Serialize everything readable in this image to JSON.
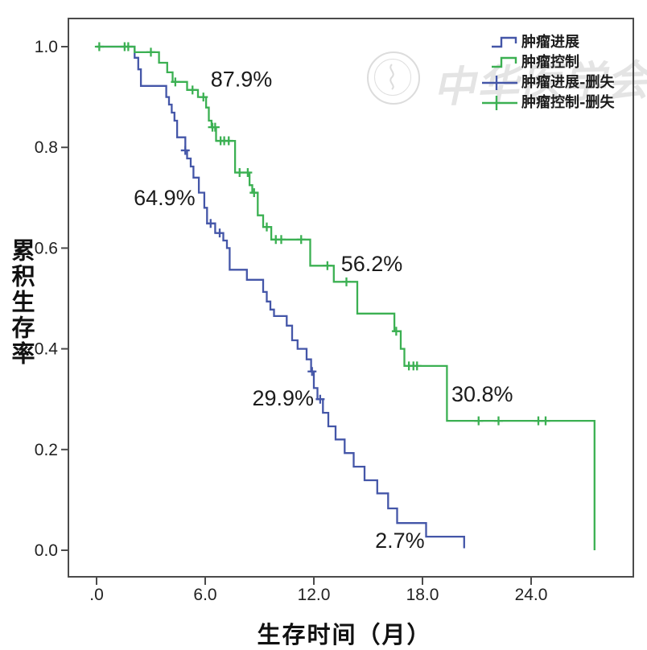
{
  "figure": {
    "background": "#ffffff",
    "frame_color": "#4b4b4b",
    "text_color": "#222222",
    "annotation_color": "#1b1b1b"
  },
  "watermark": {
    "emblem": "chinese-medical-association-seal",
    "text": "中华医学会"
  },
  "y_axis": {
    "title": "累积生存率",
    "ticks": [
      {
        "label": "1.0",
        "value": 1.0
      },
      {
        "label": "0.8",
        "value": 0.8
      },
      {
        "label": "0.6",
        "value": 0.6
      },
      {
        "label": "0.4",
        "value": 0.4
      },
      {
        "label": "0.2",
        "value": 0.2
      },
      {
        "label": "0.0",
        "value": 0.0
      }
    ]
  },
  "x_axis": {
    "title": "生存时间（月）",
    "ticks": [
      {
        "label": ".0",
        "value": 0
      },
      {
        "label": "6.0",
        "value": 6
      },
      {
        "label": "12.0",
        "value": 12
      },
      {
        "label": "18.0",
        "value": 18
      },
      {
        "label": "24.0",
        "value": 24
      }
    ]
  },
  "legend": {
    "items": [
      {
        "label": "肿瘤进展",
        "symbol": "step-line",
        "color": "#4456a8"
      },
      {
        "label": "肿瘤控制",
        "symbol": "step-line",
        "color": "#3bb052"
      },
      {
        "label": "肿瘤进展-删失",
        "symbol": "censor-cross",
        "color": "#4456a8"
      },
      {
        "label": "肿瘤控制-删失",
        "symbol": "censor-cross",
        "color": "#3bb052"
      }
    ]
  },
  "chart_data": {
    "type": "line",
    "subtype": "kaplan-meier-step",
    "title": "",
    "xlabel": "生存时间（月）",
    "ylabel": "累积生存率",
    "xlim": [
      0,
      27.5
    ],
    "ylim": [
      0,
      1.0
    ],
    "grid": false,
    "legend_position": "top-right",
    "series": [
      {
        "name": "肿瘤进展",
        "color": "#4456a8",
        "start": [
          0,
          1.0
        ],
        "steps": [
          [
            2.1,
            0.978
          ],
          [
            2.3,
            0.955
          ],
          [
            2.45,
            0.922
          ],
          [
            3.85,
            0.9
          ],
          [
            4.0,
            0.885
          ],
          [
            4.15,
            0.869
          ],
          [
            4.3,
            0.853
          ],
          [
            4.45,
            0.82
          ],
          [
            4.9,
            0.794
          ],
          [
            5.0,
            0.778
          ],
          [
            5.2,
            0.762
          ],
          [
            5.35,
            0.74
          ],
          [
            5.65,
            0.71
          ],
          [
            5.95,
            0.68
          ],
          [
            6.1,
            0.649
          ],
          [
            6.55,
            0.63
          ],
          [
            7.0,
            0.615
          ],
          [
            7.2,
            0.6
          ],
          [
            7.35,
            0.557
          ],
          [
            8.3,
            0.537
          ],
          [
            9.2,
            0.513
          ],
          [
            9.4,
            0.494
          ],
          [
            9.6,
            0.478
          ],
          [
            9.8,
            0.465
          ],
          [
            10.5,
            0.446
          ],
          [
            10.8,
            0.417
          ],
          [
            11.1,
            0.4
          ],
          [
            11.6,
            0.379
          ],
          [
            11.85,
            0.355
          ],
          [
            12.0,
            0.322
          ],
          [
            12.2,
            0.3
          ],
          [
            12.5,
            0.273
          ],
          [
            12.8,
            0.246
          ],
          [
            13.2,
            0.22
          ],
          [
            13.7,
            0.193
          ],
          [
            14.2,
            0.166
          ],
          [
            14.8,
            0.139
          ],
          [
            15.5,
            0.113
          ],
          [
            16.1,
            0.083
          ],
          [
            16.6,
            0.054
          ],
          [
            18.2,
            0.027
          ],
          [
            20.3,
            0.004
          ]
        ],
        "censors": [
          [
            4.9,
            0.794
          ],
          [
            6.3,
            0.649
          ],
          [
            6.8,
            0.63
          ],
          [
            11.9,
            0.355
          ],
          [
            12.35,
            0.3
          ]
        ]
      },
      {
        "name": "肿瘤控制",
        "color": "#3bb052",
        "start": [
          0,
          1.0
        ],
        "steps": [
          [
            2.1,
            0.989
          ],
          [
            3.45,
            0.968
          ],
          [
            3.9,
            0.949
          ],
          [
            4.2,
            0.93
          ],
          [
            5.0,
            0.914
          ],
          [
            5.6,
            0.9
          ],
          [
            6.05,
            0.879
          ],
          [
            6.2,
            0.853
          ],
          [
            6.35,
            0.84
          ],
          [
            6.6,
            0.813
          ],
          [
            7.65,
            0.75
          ],
          [
            8.45,
            0.725
          ],
          [
            8.6,
            0.71
          ],
          [
            8.9,
            0.665
          ],
          [
            9.2,
            0.642
          ],
          [
            9.65,
            0.617
          ],
          [
            11.8,
            0.565
          ],
          [
            13.1,
            0.533
          ],
          [
            14.4,
            0.47
          ],
          [
            16.45,
            0.435
          ],
          [
            16.8,
            0.4
          ],
          [
            17.0,
            0.366
          ],
          [
            19.35,
            0.257
          ],
          [
            27.5,
            0.0
          ]
        ],
        "censors": [
          [
            0.15,
            1.0
          ],
          [
            1.55,
            1.0
          ],
          [
            1.75,
            1.0
          ],
          [
            3.0,
            0.989
          ],
          [
            4.35,
            0.93
          ],
          [
            5.3,
            0.914
          ],
          [
            5.9,
            0.9
          ],
          [
            6.4,
            0.84
          ],
          [
            6.55,
            0.84
          ],
          [
            6.85,
            0.813
          ],
          [
            7.05,
            0.813
          ],
          [
            7.3,
            0.813
          ],
          [
            7.9,
            0.75
          ],
          [
            8.35,
            0.75
          ],
          [
            8.7,
            0.71
          ],
          [
            9.4,
            0.642
          ],
          [
            9.9,
            0.617
          ],
          [
            10.2,
            0.617
          ],
          [
            11.3,
            0.617
          ],
          [
            12.75,
            0.565
          ],
          [
            13.8,
            0.533
          ],
          [
            16.55,
            0.435
          ],
          [
            17.25,
            0.366
          ],
          [
            17.5,
            0.366
          ],
          [
            17.7,
            0.366
          ],
          [
            21.1,
            0.257
          ],
          [
            22.2,
            0.257
          ],
          [
            24.4,
            0.257
          ],
          [
            24.8,
            0.257
          ]
        ]
      }
    ],
    "annotations": [
      {
        "text": "87.9%",
        "t": 8.0,
        "v": 0.935
      },
      {
        "text": "64.9%",
        "t": 3.75,
        "v": 0.7
      },
      {
        "text": "56.2%",
        "t": 15.2,
        "v": 0.569
      },
      {
        "text": "29.9%",
        "t": 10.3,
        "v": 0.302
      },
      {
        "text": "30.8%",
        "t": 21.3,
        "v": 0.31
      },
      {
        "text": "2.7%",
        "t": 16.75,
        "v": 0.019
      }
    ]
  }
}
